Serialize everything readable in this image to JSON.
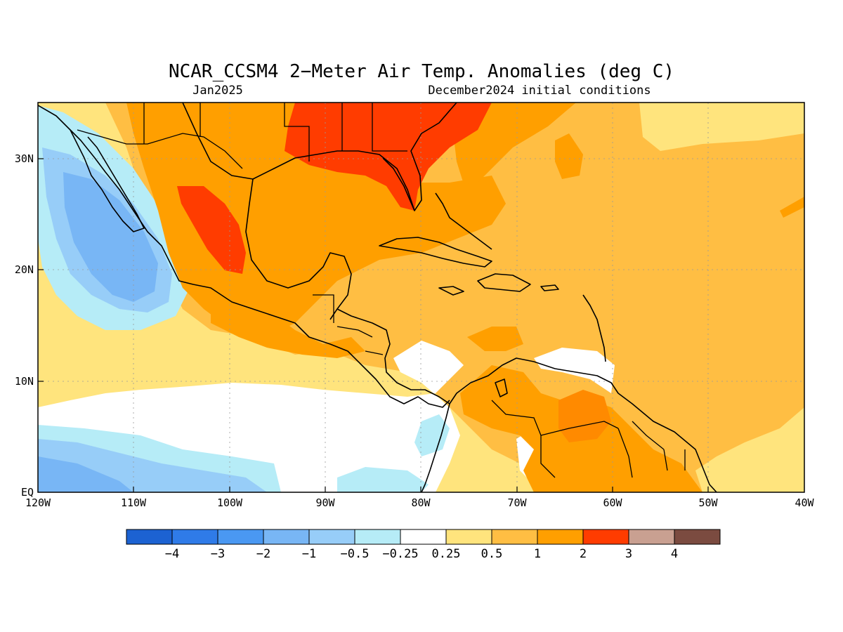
{
  "map": {
    "title": "NCAR_CCSM4 2−Meter Air Temp. Anomalies (deg C)",
    "valid_month": "Jan2025",
    "init_label": "December2024 initial conditions",
    "lat_ticks": [
      "30N",
      "20N",
      "10N",
      "EQ"
    ],
    "lon_ticks": [
      "120W",
      "110W",
      "100W",
      "90W",
      "80W",
      "70W",
      "60W",
      "50W",
      "40W"
    ],
    "extent": {
      "lon_min": -120,
      "lon_max": -40,
      "lat_min": 0,
      "lat_max": 35
    },
    "palette": {
      "neg4": "#1c62d2",
      "neg3": "#2f7be8",
      "neg2": "#4a98f2",
      "neg1": "#78b6f5",
      "neg05": "#97cdf8",
      "neg025": "#b6ecf7",
      "zero": "#ffffff",
      "pos025": "#ffe47d",
      "pos05": "#ffbe43",
      "pos1": "#ff9f00",
      "pos2": "#ff3c00",
      "pos3": "#c9a091",
      "pos4": "#7b4b40"
    }
  },
  "colorbar": {
    "labels": [
      "−4",
      "−3",
      "−2",
      "−1",
      "−0.5",
      "−0.25",
      "0.25",
      "0.5",
      "1",
      "2",
      "3",
      "4"
    ],
    "colors": [
      "#1c62d2",
      "#2f7be8",
      "#4a98f2",
      "#78b6f5",
      "#97cdf8",
      "#b6ecf7",
      "#ffffff",
      "#ffe47d",
      "#ffbe43",
      "#ff9f00",
      "#ff3c00",
      "#c9a091",
      "#7b4b40"
    ]
  }
}
